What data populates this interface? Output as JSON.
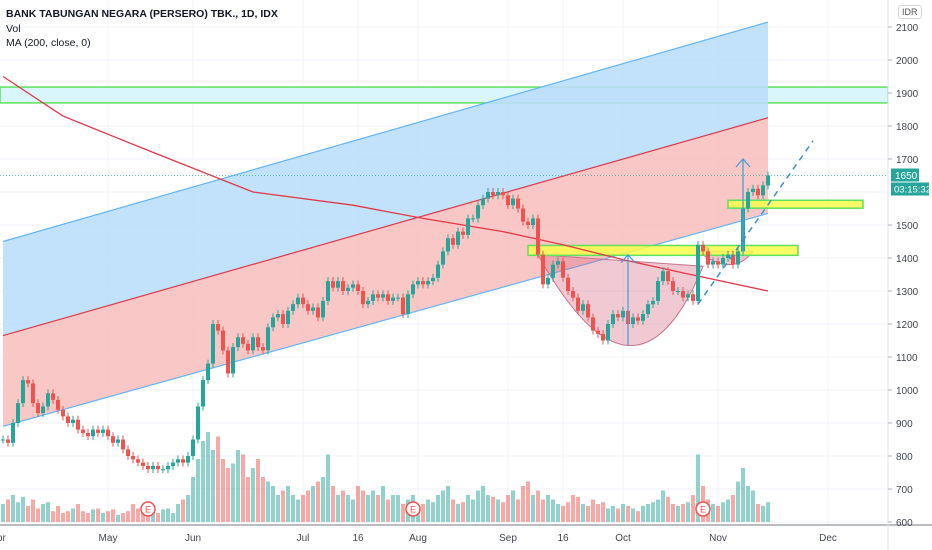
{
  "legend": {
    "title": "BANK TABUNGAN NEGARA (PERSERO) TBK., 1D, IDX",
    "vol": "Vol",
    "ma": "MA (200, close, 0)"
  },
  "currency": "IDR",
  "last_price_label": "1650",
  "countdown_label": "03:15:32",
  "colors": {
    "up": "#26a69a",
    "down": "#ef5350",
    "ma": "#e0384a",
    "channel_upper_fill": "#bbdefb",
    "channel_lower_fill": "#f8c1bf",
    "channel_line": "#64b5f6",
    "zone_fill": "#d8f6fb",
    "zone_border": "#5fe05f",
    "box_fill": "#f7fb4a",
    "last_price": "#26a69a"
  },
  "chart_data": {
    "type": "candlestick",
    "title": "BANK TABUNGAN NEGARA (PERSERO) TBK., 1D, IDX",
    "ylim": [
      600,
      2100
    ],
    "y_ticks": [
      2100,
      2000,
      1900,
      1800,
      1700,
      1600,
      1500,
      1400,
      1300,
      1200,
      1100,
      1000,
      900,
      800,
      700,
      600
    ],
    "y_tick_labels": [
      "2100",
      "2000",
      "1900",
      "1800",
      "1700",
      "",
      "1500",
      "1400",
      "1300",
      "1200",
      "1100",
      "1000",
      "900",
      "800",
      "700",
      "600"
    ],
    "x_ticks": [
      {
        "label": "Apr",
        "bar": -1
      },
      {
        "label": "May",
        "bar": 21
      },
      {
        "label": "Jun",
        "bar": 38
      },
      {
        "label": "Jul",
        "bar": 60
      },
      {
        "label": "16",
        "bar": 71
      },
      {
        "label": "Aug",
        "bar": 83
      },
      {
        "label": "Sep",
        "bar": 101
      },
      {
        "label": "16",
        "bar": 112
      },
      {
        "label": "Oct",
        "bar": 124
      },
      {
        "label": "Nov",
        "bar": 143
      },
      {
        "label": "Dec",
        "bar": 165
      }
    ],
    "close": [
      850,
      840,
      900,
      960,
      1030,
      1020,
      960,
      930,
      950,
      990,
      970,
      940,
      920,
      900,
      910,
      880,
      870,
      860,
      880,
      870,
      880,
      860,
      840,
      850,
      820,
      800,
      790,
      780,
      770,
      760,
      770,
      760,
      760,
      770,
      780,
      790,
      780,
      800,
      850,
      950,
      1030,
      1080,
      1200,
      1180,
      1120,
      1050,
      1130,
      1160,
      1140,
      1120,
      1160,
      1130,
      1120,
      1190,
      1220,
      1230,
      1200,
      1240,
      1260,
      1280,
      1260,
      1240,
      1250,
      1220,
      1270,
      1330,
      1310,
      1330,
      1300,
      1310,
      1320,
      1300,
      1260,
      1270,
      1290,
      1280,
      1290,
      1270,
      1280,
      1280,
      1230,
      1290,
      1320,
      1330,
      1320,
      1330,
      1340,
      1380,
      1420,
      1460,
      1440,
      1480,
      1470,
      1520,
      1520,
      1560,
      1580,
      1600,
      1590,
      1600,
      1590,
      1560,
      1580,
      1550,
      1510,
      1500,
      1520,
      1410,
      1320,
      1340,
      1380,
      1390,
      1340,
      1300,
      1280,
      1240,
      1260,
      1220,
      1180,
      1170,
      1150,
      1200,
      1230,
      1220,
      1240,
      1200,
      1220,
      1210,
      1230,
      1260,
      1270,
      1330,
      1360,
      1330,
      1300,
      1300,
      1280,
      1290,
      1270,
      1440,
      1420,
      1380,
      1390,
      1380,
      1400,
      1410,
      1380,
      1420,
      1550,
      1600,
      1610,
      1590,
      1620,
      1650
    ],
    "volume": [
      20,
      25,
      30,
      22,
      28,
      18,
      25,
      15,
      20,
      22,
      12,
      18,
      10,
      12,
      15,
      20,
      12,
      10,
      14,
      15,
      10,
      12,
      14,
      8,
      10,
      12,
      20,
      15,
      12,
      16,
      12,
      10,
      14,
      15,
      10,
      20,
      25,
      30,
      50,
      70,
      90,
      100,
      80,
      95,
      70,
      60,
      65,
      80,
      75,
      50,
      60,
      70,
      50,
      45,
      40,
      30,
      35,
      40,
      30,
      25,
      30,
      35,
      40,
      45,
      50,
      75,
      40,
      30,
      35,
      30,
      25,
      40,
      35,
      30,
      35,
      30,
      40,
      25,
      30,
      30,
      20,
      25,
      30,
      18,
      20,
      25,
      22,
      30,
      35,
      40,
      25,
      20,
      22,
      30,
      25,
      35,
      40,
      30,
      28,
      25,
      22,
      30,
      35,
      25,
      40,
      45,
      30,
      35,
      25,
      30,
      25,
      20,
      18,
      22,
      30,
      28,
      20,
      18,
      25,
      20,
      22,
      15,
      18,
      15,
      20,
      18,
      15,
      12,
      18,
      20,
      22,
      25,
      35,
      28,
      20,
      18,
      20,
      22,
      30,
      75,
      40,
      25,
      20,
      18,
      22,
      25,
      30,
      45,
      60,
      40,
      35,
      20,
      18,
      22
    ],
    "ma200": [
      {
        "bar": 0,
        "value": 1950
      },
      {
        "bar": 12,
        "value": 1830
      },
      {
        "bar": 30,
        "value": 1720
      },
      {
        "bar": 50,
        "value": 1600
      },
      {
        "bar": 70,
        "value": 1560
      },
      {
        "bar": 84,
        "value": 1520
      },
      {
        "bar": 100,
        "value": 1480
      },
      {
        "bar": 112,
        "value": 1440
      },
      {
        "bar": 124,
        "value": 1395
      },
      {
        "bar": 136,
        "value": 1355
      },
      {
        "bar": 153,
        "value": 1300
      }
    ],
    "earnings_markers": [
      {
        "bar": 29,
        "label": "E"
      },
      {
        "bar": 82,
        "label": "E"
      },
      {
        "bar": 140,
        "label": "E"
      }
    ],
    "drawings": {
      "channel": {
        "upper": [
          [
            0,
            1450
          ],
          [
            153,
            2115
          ]
        ],
        "middle": [
          [
            0,
            1165
          ],
          [
            153,
            1825
          ]
        ],
        "lower": [
          [
            0,
            890
          ],
          [
            153,
            1535
          ]
        ]
      },
      "resistance_zone": [
        1870,
        1918
      ],
      "boxes": [
        {
          "from_bar": 105,
          "to_bar": 159,
          "range": [
            1408,
            1438
          ]
        },
        {
          "from_bar": 145,
          "to_bar": 172,
          "range": [
            1551,
            1575
          ]
        }
      ],
      "cup": {
        "start": [
          107,
          1410
        ],
        "bottom": [
          125,
          1135
        ],
        "end": [
          140,
          1375
        ]
      },
      "small_cup": [
        [
          139,
          1420
        ],
        [
          146,
          1380
        ],
        [
          150,
          1420
        ]
      ],
      "arrows": [
        {
          "bar": 125,
          "from": 1135,
          "to": 1410
        },
        {
          "bar": 148,
          "from": 1420,
          "to": 1700
        }
      ],
      "trend_dashed": [
        [
          139,
          1260
        ],
        [
          162,
          1755
        ]
      ]
    },
    "last_price": 1650
  }
}
